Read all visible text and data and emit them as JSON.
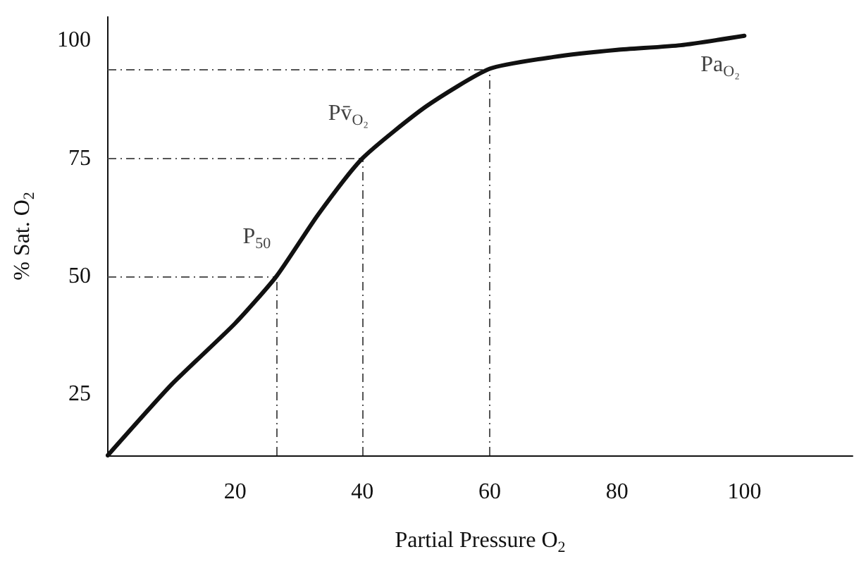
{
  "chart_data": {
    "type": "line",
    "xlabel": "Partial Pressure O$_{2}$",
    "ylabel": "% Sat. O$_{2}$",
    "x": [
      0,
      10,
      20,
      26.5,
      33,
      40,
      50,
      60,
      70,
      80,
      90,
      100
    ],
    "series": [
      {
        "color": "#111111",
        "values": [
          12,
          27,
          40,
          50,
          63,
          75,
          86,
          94,
          96.5,
          98,
          99,
          101
        ]
      }
    ],
    "xlim": [
      0,
      117
    ],
    "xticks": [
      20,
      40,
      60,
      80,
      100
    ],
    "ylim": [
      12,
      105
    ],
    "yticks": [
      25,
      50,
      75,
      100
    ],
    "grid": false,
    "marker": "none",
    "line_style": "solid",
    "ref_lines": [
      {
        "axis": "x",
        "value": 26.5,
        "color": "#555555",
        "line_style": "dashed"
      },
      {
        "axis": "x",
        "value": 40,
        "color": "#555555",
        "line_style": "dashed"
      },
      {
        "axis": "x",
        "value": 60,
        "color": "#555555",
        "line_style": "dashed"
      },
      {
        "axis": "y",
        "value": 50,
        "color": "#555555",
        "line_style": "dashed"
      },
      {
        "axis": "y",
        "value": 75,
        "color": "#555555",
        "line_style": "dashed"
      },
      {
        "axis": "y",
        "value": 94,
        "color": "#555555",
        "line_style": "dashed"
      }
    ],
    "annotations": [
      {
        "text": "P$_{50}$",
        "x": 26.5,
        "y": 50
      },
      {
        "text": "Pv̄$_{O₂}$",
        "x": 40,
        "y": 75
      },
      {
        "text": "Pa$_{O₂}$",
        "x": 90,
        "y": 99
      }
    ]
  }
}
